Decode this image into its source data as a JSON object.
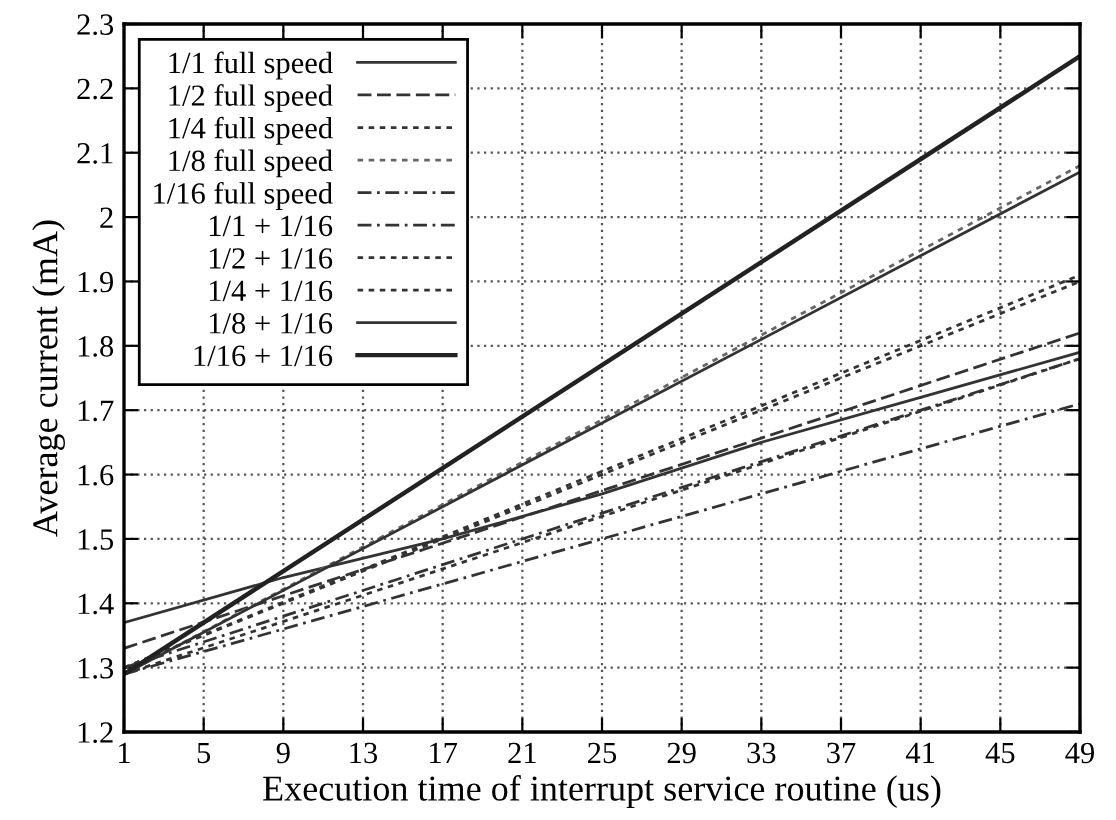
{
  "chart_data": {
    "type": "line",
    "xlabel": "Execution time of interrupt service routine (us)",
    "ylabel": "Average current (mA)",
    "x": [
      1,
      49
    ],
    "series": [
      {
        "name": "1/1 full speed",
        "color": "#333333",
        "line_style": "solid",
        "x": [
          1,
          9,
          17,
          25,
          33,
          41,
          49
        ],
        "values": [
          1.37,
          1.44,
          1.5,
          1.57,
          1.65,
          1.72,
          1.79
        ]
      },
      {
        "name": "1/2 full speed",
        "color": "#333333",
        "line_style": "dashed",
        "values": [
          1.33,
          1.82
        ]
      },
      {
        "name": "1/4 full speed",
        "color": "#333333",
        "line_style": "dotted",
        "values": [
          1.3,
          1.91
        ]
      },
      {
        "name": "1/8 full speed",
        "color": "#666666",
        "line_style": "dotted",
        "values": [
          1.29,
          2.08
        ]
      },
      {
        "name": "1/16 full speed",
        "color": "#333333",
        "line_style": "dashdot",
        "values": [
          1.29,
          1.71
        ]
      },
      {
        "name": "1/1 + 1/16",
        "color": "#333333",
        "line_style": "dashdot",
        "values": [
          1.3,
          1.78
        ]
      },
      {
        "name": "1/2 + 1/16",
        "color": "#333333",
        "line_style": "dotted",
        "values": [
          1.3,
          1.9
        ]
      },
      {
        "name": "1/4 + 1/16",
        "color": "#333333",
        "line_style": "dotted",
        "values": [
          1.29,
          1.78
        ]
      },
      {
        "name": "1/8 + 1/16",
        "color": "#333333",
        "line_style": "solid",
        "values": [
          1.29,
          2.07
        ]
      },
      {
        "name": "1/16 + 1/16",
        "color": "#222222",
        "line_style": "solid",
        "values": [
          1.29,
          2.25
        ]
      }
    ],
    "xlim": [
      1,
      49
    ],
    "xticks": [
      1,
      5,
      9,
      13,
      17,
      21,
      25,
      29,
      33,
      37,
      41,
      45,
      49
    ],
    "ylim": [
      1.2,
      2.3
    ],
    "yticks": [
      1.2,
      1.3,
      1.4,
      1.5,
      1.6,
      1.7,
      1.8,
      1.9,
      {
        "value": 2.0,
        "label": "2"
      },
      2.1,
      2.2,
      2.3
    ],
    "grid": true,
    "legend": "top left",
    "marker": "none"
  }
}
